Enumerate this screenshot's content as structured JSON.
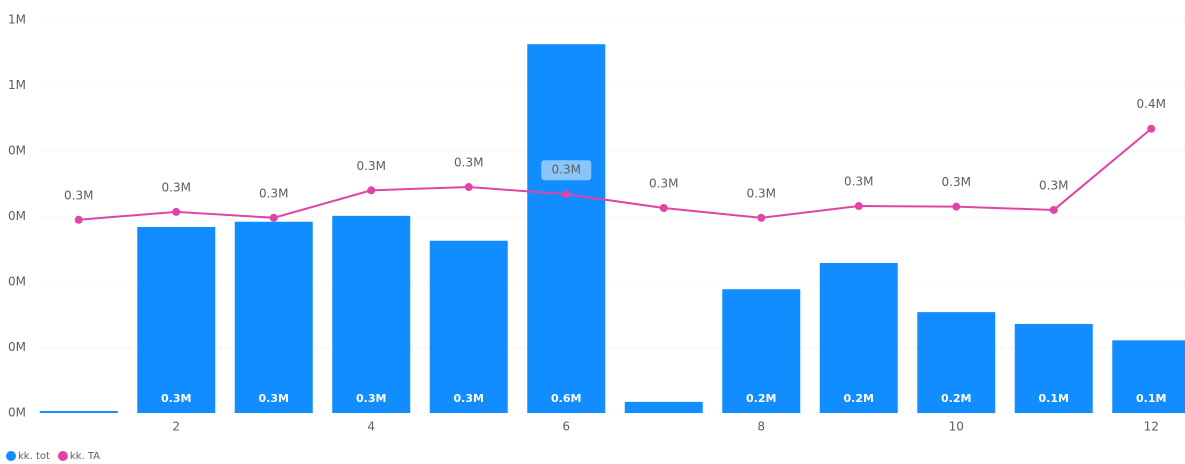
{
  "chart_data": {
    "type": "bar+line",
    "categories": [
      null,
      2,
      null,
      4,
      null,
      6,
      null,
      8,
      null,
      10,
      null,
      12
    ],
    "series": [
      {
        "name": "kk. tot",
        "color": "#118dff",
        "type": "bar",
        "values": [
          3000,
          284000,
          292000,
          301000,
          263000,
          563000,
          17000,
          189000,
          229000,
          154000,
          136000,
          111000
        ],
        "value_labels": [
          null,
          "0.3M",
          "0.3M",
          "0.3M",
          "0.3M",
          "0.6M",
          null,
          "0.2M",
          "0.2M",
          "0.2M",
          "0.1M",
          "0.1M"
        ]
      },
      {
        "name": "kk. TA",
        "color": "#e044a7",
        "type": "line",
        "values": [
          295000,
          307000,
          298000,
          340000,
          345000,
          334000,
          313000,
          298000,
          316000,
          315000,
          310000,
          434000
        ],
        "value_labels": [
          "0.3M",
          "0.3M",
          "0.3M",
          "0.3M",
          "0.3M",
          "0.3M",
          "0.3M",
          "0.3M",
          "0.3M",
          "0.3M",
          "0.3M",
          "0.4M"
        ]
      }
    ],
    "ylim": [
      0,
      600000
    ],
    "yticks": [
      {
        "value": 0,
        "label": "0M"
      },
      {
        "value": 100000,
        "label": "0M"
      },
      {
        "value": 200000,
        "label": "0M"
      },
      {
        "value": 300000,
        "label": "0M"
      },
      {
        "value": 400000,
        "label": "0M"
      },
      {
        "value": 500000,
        "label": "1M"
      },
      {
        "value": 600000,
        "label": "1M"
      }
    ],
    "grid": true,
    "legend": "bottom-left"
  }
}
